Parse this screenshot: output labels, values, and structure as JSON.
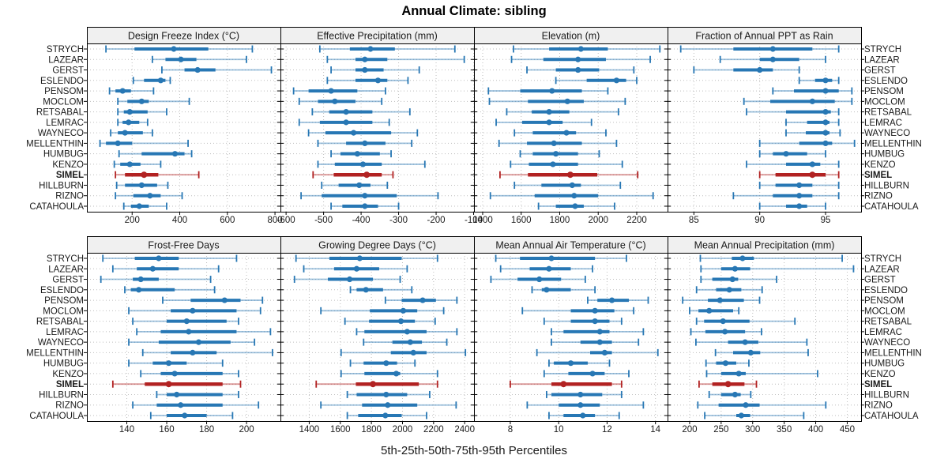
{
  "title": "Annual Climate: sibling",
  "caption": "5th-25th-50th-75th-95th Percentiles",
  "highlight_site": "SIMEL",
  "colors": {
    "series": "#2777B4",
    "highlight": "#B22222",
    "strip_bg": "#F0F0F0",
    "border": "#000000",
    "grid": "#BEBEBE",
    "text": "#1A1A1A"
  },
  "chart_data": {
    "type": "scatter",
    "variant": "percentile-range-dotplot",
    "grid": "dotted",
    "legend_position": "none",
    "percentile_labels": [
      "p5",
      "p25",
      "p50",
      "p75",
      "p95"
    ],
    "sites": [
      "STRYCH",
      "LAZEAR",
      "GERST",
      "ESLENDO",
      "PENSOM",
      "MOCLOM",
      "RETSABAL",
      "LEMRAC",
      "WAYNECO",
      "MELLENTHIN",
      "HUMBUG",
      "KENZO",
      "SIMEL",
      "HILLBURN",
      "RIZNO",
      "CATAHOULA"
    ],
    "panels": [
      {
        "id": "design-freeze-index",
        "title": "Design Freeze Index (°C)",
        "row": 0,
        "col": 0,
        "ticks": [
          200,
          400,
          600,
          800
        ],
        "xlim": [
          10,
          823
        ],
        "values": [
          [
            90,
            210,
            375,
            520,
            705
          ],
          [
            285,
            340,
            405,
            470,
            680
          ],
          [
            325,
            420,
            475,
            550,
            785
          ],
          [
            205,
            250,
            320,
            340,
            360
          ],
          [
            105,
            130,
            160,
            195,
            290
          ],
          [
            140,
            180,
            240,
            270,
            440
          ],
          [
            140,
            165,
            190,
            265,
            345
          ],
          [
            140,
            160,
            185,
            230,
            265
          ],
          [
            110,
            140,
            170,
            245,
            285
          ],
          [
            65,
            90,
            140,
            200,
            435
          ],
          [
            145,
            240,
            380,
            420,
            450
          ],
          [
            125,
            150,
            190,
            235,
            320
          ],
          [
            130,
            170,
            250,
            310,
            480
          ],
          [
            135,
            170,
            240,
            305,
            350
          ],
          [
            130,
            205,
            275,
            320,
            410
          ],
          [
            165,
            195,
            230,
            270,
            345
          ]
        ]
      },
      {
        "id": "effective-precipitation",
        "title": "Effective Precipitation (mm)",
        "row": 0,
        "col": 1,
        "ticks": [
          -600,
          -500,
          -400,
          -300,
          -200,
          -100
        ],
        "xlim": [
          -615,
          -99
        ],
        "values": [
          [
            -510,
            -430,
            -375,
            -310,
            -150
          ],
          [
            -490,
            -415,
            -390,
            -330,
            -125
          ],
          [
            -480,
            -415,
            -390,
            -340,
            -245
          ],
          [
            -490,
            -415,
            -355,
            -330,
            -275
          ],
          [
            -580,
            -540,
            -480,
            -410,
            -335
          ],
          [
            -565,
            -515,
            -470,
            -415,
            -345
          ],
          [
            -530,
            -485,
            -440,
            -370,
            -270
          ],
          [
            -565,
            -510,
            -440,
            -370,
            -325
          ],
          [
            -540,
            -495,
            -420,
            -320,
            -250
          ],
          [
            -515,
            -440,
            -390,
            -335,
            -265
          ],
          [
            -480,
            -455,
            -410,
            -350,
            -320
          ],
          [
            -515,
            -470,
            -395,
            -345,
            -230
          ],
          [
            -528,
            -473,
            -385,
            -345,
            -315
          ],
          [
            -505,
            -460,
            -405,
            -375,
            -330
          ],
          [
            -560,
            -505,
            -390,
            -305,
            -195
          ],
          [
            -480,
            -450,
            -390,
            -355,
            -300
          ]
        ]
      },
      {
        "id": "elevation",
        "title": "Elevation (m)",
        "row": 0,
        "col": 2,
        "ticks": [
          1400,
          1600,
          1800,
          2000,
          2200
        ],
        "xlim": [
          1355,
          2360
        ],
        "values": [
          [
            1560,
            1745,
            1910,
            2050,
            2320
          ],
          [
            1550,
            1715,
            1895,
            2040,
            2270
          ],
          [
            1630,
            1780,
            1895,
            2005,
            2185
          ],
          [
            1780,
            1940,
            2095,
            2145,
            2200
          ],
          [
            1430,
            1595,
            1760,
            1915,
            2050
          ],
          [
            1435,
            1635,
            1840,
            1925,
            2140
          ],
          [
            1525,
            1655,
            1745,
            1850,
            2105
          ],
          [
            1470,
            1605,
            1745,
            1815,
            1965
          ],
          [
            1565,
            1660,
            1835,
            1885,
            2040
          ],
          [
            1485,
            1630,
            1770,
            1915,
            2095
          ],
          [
            1595,
            1660,
            1780,
            1895,
            2005
          ],
          [
            1545,
            1640,
            1765,
            1895,
            2125
          ],
          [
            1490,
            1635,
            1855,
            1995,
            2205
          ],
          [
            1565,
            1705,
            1865,
            1910,
            2115
          ],
          [
            1440,
            1670,
            1875,
            2000,
            2285
          ],
          [
            1690,
            1780,
            1880,
            1925,
            2085
          ]
        ]
      },
      {
        "id": "fraction-ppt-as-rain",
        "title": "Fraction of Annual PPT as Rain",
        "row": 0,
        "col": 3,
        "ticks": [
          85,
          90,
          95
        ],
        "xlim": [
          83,
          97.7
        ],
        "values": [
          [
            84,
            88,
            91,
            94,
            96
          ],
          [
            87,
            90,
            91,
            93,
            95
          ],
          [
            85,
            88,
            90,
            91,
            93
          ],
          [
            93,
            94.2,
            95,
            95.5,
            96
          ],
          [
            91,
            92.6,
            95,
            96,
            97
          ],
          [
            88.8,
            90.8,
            94,
            95.7,
            97
          ],
          [
            89,
            92,
            95,
            95.4,
            96
          ],
          [
            92,
            93.6,
            95,
            95.3,
            96
          ],
          [
            92,
            93.5,
            95,
            95.3,
            96.1
          ],
          [
            90,
            93,
            95,
            95.5,
            97.2
          ],
          [
            90,
            91,
            92,
            93.6,
            95
          ],
          [
            89,
            92,
            94,
            94.6,
            96
          ],
          [
            90,
            91.2,
            94,
            95,
            96
          ],
          [
            90,
            91.2,
            93,
            94,
            96
          ],
          [
            88,
            91,
            93,
            94,
            96
          ],
          [
            90,
            92,
            93,
            93.6,
            95
          ]
        ]
      },
      {
        "id": "frost-free-days",
        "title": "Frost-Free Days",
        "row": 1,
        "col": 0,
        "ticks": [
          140,
          160,
          180,
          200
        ],
        "xlim": [
          120,
          217
        ],
        "values": [
          [
            128,
            144,
            156,
            166,
            195
          ],
          [
            133,
            145,
            153,
            166,
            186
          ],
          [
            127,
            143,
            147,
            156,
            182
          ],
          [
            139,
            142,
            146,
            164,
            184
          ],
          [
            158,
            172,
            189,
            197,
            208
          ],
          [
            141,
            162,
            173,
            195,
            207
          ],
          [
            143,
            160,
            170,
            190,
            196
          ],
          [
            145,
            157,
            171,
            195,
            212
          ],
          [
            141,
            156,
            176,
            192,
            204
          ],
          [
            148,
            162,
            173,
            185,
            213
          ],
          [
            141,
            153,
            161,
            170,
            188
          ],
          [
            147,
            157,
            164,
            188,
            196
          ],
          [
            133,
            149,
            161,
            188,
            197
          ],
          [
            155,
            160,
            165,
            188,
            196
          ],
          [
            143,
            155,
            167,
            188,
            206
          ],
          [
            152,
            160,
            169,
            180,
            193
          ]
        ]
      },
      {
        "id": "growing-degree-days",
        "title": "Growing Degree Days (°C)",
        "row": 1,
        "col": 1,
        "ticks": [
          1400,
          1600,
          1800,
          2000,
          2200,
          2400
        ],
        "xlim": [
          1215,
          2460
        ],
        "values": [
          [
            1315,
            1530,
            1725,
            1995,
            2225
          ],
          [
            1365,
            1560,
            1705,
            1850,
            2030
          ],
          [
            1305,
            1520,
            1660,
            1810,
            1985
          ],
          [
            1665,
            1705,
            1765,
            1875,
            2060
          ],
          [
            1890,
            1995,
            2130,
            2215,
            2350
          ],
          [
            1475,
            1790,
            2005,
            2095,
            2265
          ],
          [
            1630,
            1785,
            1990,
            2080,
            2210
          ],
          [
            1705,
            1755,
            2030,
            2155,
            2350
          ],
          [
            1750,
            1935,
            2050,
            2125,
            2285
          ],
          [
            1605,
            1925,
            2070,
            2155,
            2405
          ],
          [
            1665,
            1750,
            1895,
            1965,
            2080
          ],
          [
            1605,
            1755,
            1960,
            1985,
            2225
          ],
          [
            1445,
            1700,
            1810,
            2105,
            2225
          ],
          [
            1645,
            1705,
            1895,
            2030,
            2175
          ],
          [
            1475,
            1740,
            1905,
            2095,
            2345
          ],
          [
            1645,
            1715,
            1890,
            1995,
            2155
          ]
        ]
      },
      {
        "id": "mean-annual-air-temperature",
        "title": "Mean Annual Air Temperature (°C)",
        "row": 1,
        "col": 2,
        "ticks": [
          8,
          10,
          12,
          14
        ],
        "xlim": [
          6.5,
          14.5
        ],
        "values": [
          [
            7.4,
            8.4,
            9.7,
            11.5,
            12.8
          ],
          [
            7.6,
            8.8,
            9.6,
            10.5,
            11.4
          ],
          [
            7.2,
            8.3,
            9.2,
            10.1,
            11.1
          ],
          [
            8.9,
            9.3,
            9.5,
            10.5,
            11.5
          ],
          [
            11.2,
            11.6,
            12.2,
            12.9,
            13.7
          ],
          [
            8.5,
            10.5,
            11.5,
            12.3,
            13.1
          ],
          [
            9.4,
            10.5,
            11.5,
            12.1,
            12.6
          ],
          [
            9.7,
            10.2,
            11.7,
            12.1,
            13.5
          ],
          [
            9.7,
            10.9,
            11.7,
            12.2,
            13.3
          ],
          [
            9.1,
            11.3,
            11.9,
            12.2,
            14.1
          ],
          [
            9.6,
            9.8,
            10.5,
            11.2,
            12.1
          ],
          [
            9.4,
            10.4,
            11.4,
            11.9,
            12.9
          ],
          [
            8.0,
            9.7,
            10.2,
            12.2,
            12.6
          ],
          [
            9.5,
            9.7,
            10.9,
            11.8,
            12.6
          ],
          [
            8.7,
            10.0,
            10.9,
            11.7,
            13.5
          ],
          [
            9.6,
            10.2,
            11.0,
            11.5,
            12.5
          ]
        ]
      },
      {
        "id": "mean-annual-precipitation",
        "title": "Mean Annual Precipitation (mm)",
        "row": 1,
        "col": 3,
        "ticks": [
          200,
          250,
          300,
          350,
          400,
          450
        ],
        "xlim": [
          165,
          472
        ],
        "values": [
          [
            217,
            267,
            284,
            302,
            442
          ],
          [
            218,
            250,
            272,
            296,
            460
          ],
          [
            218,
            236,
            268,
            277,
            338
          ],
          [
            211,
            242,
            263,
            282,
            315
          ],
          [
            189,
            229,
            248,
            286,
            311
          ],
          [
            200,
            214,
            231,
            269,
            278
          ],
          [
            211,
            223,
            253,
            295,
            367
          ],
          [
            202,
            225,
            256,
            288,
            314
          ],
          [
            210,
            261,
            288,
            309,
            386
          ],
          [
            241,
            269,
            297,
            312,
            388
          ],
          [
            226,
            242,
            257,
            274,
            294
          ],
          [
            227,
            250,
            278,
            289,
            403
          ],
          [
            215,
            236,
            261,
            287,
            306
          ],
          [
            231,
            250,
            272,
            281,
            297
          ],
          [
            213,
            246,
            289,
            311,
            416
          ],
          [
            224,
            274,
            282,
            296,
            381
          ]
        ]
      }
    ]
  }
}
